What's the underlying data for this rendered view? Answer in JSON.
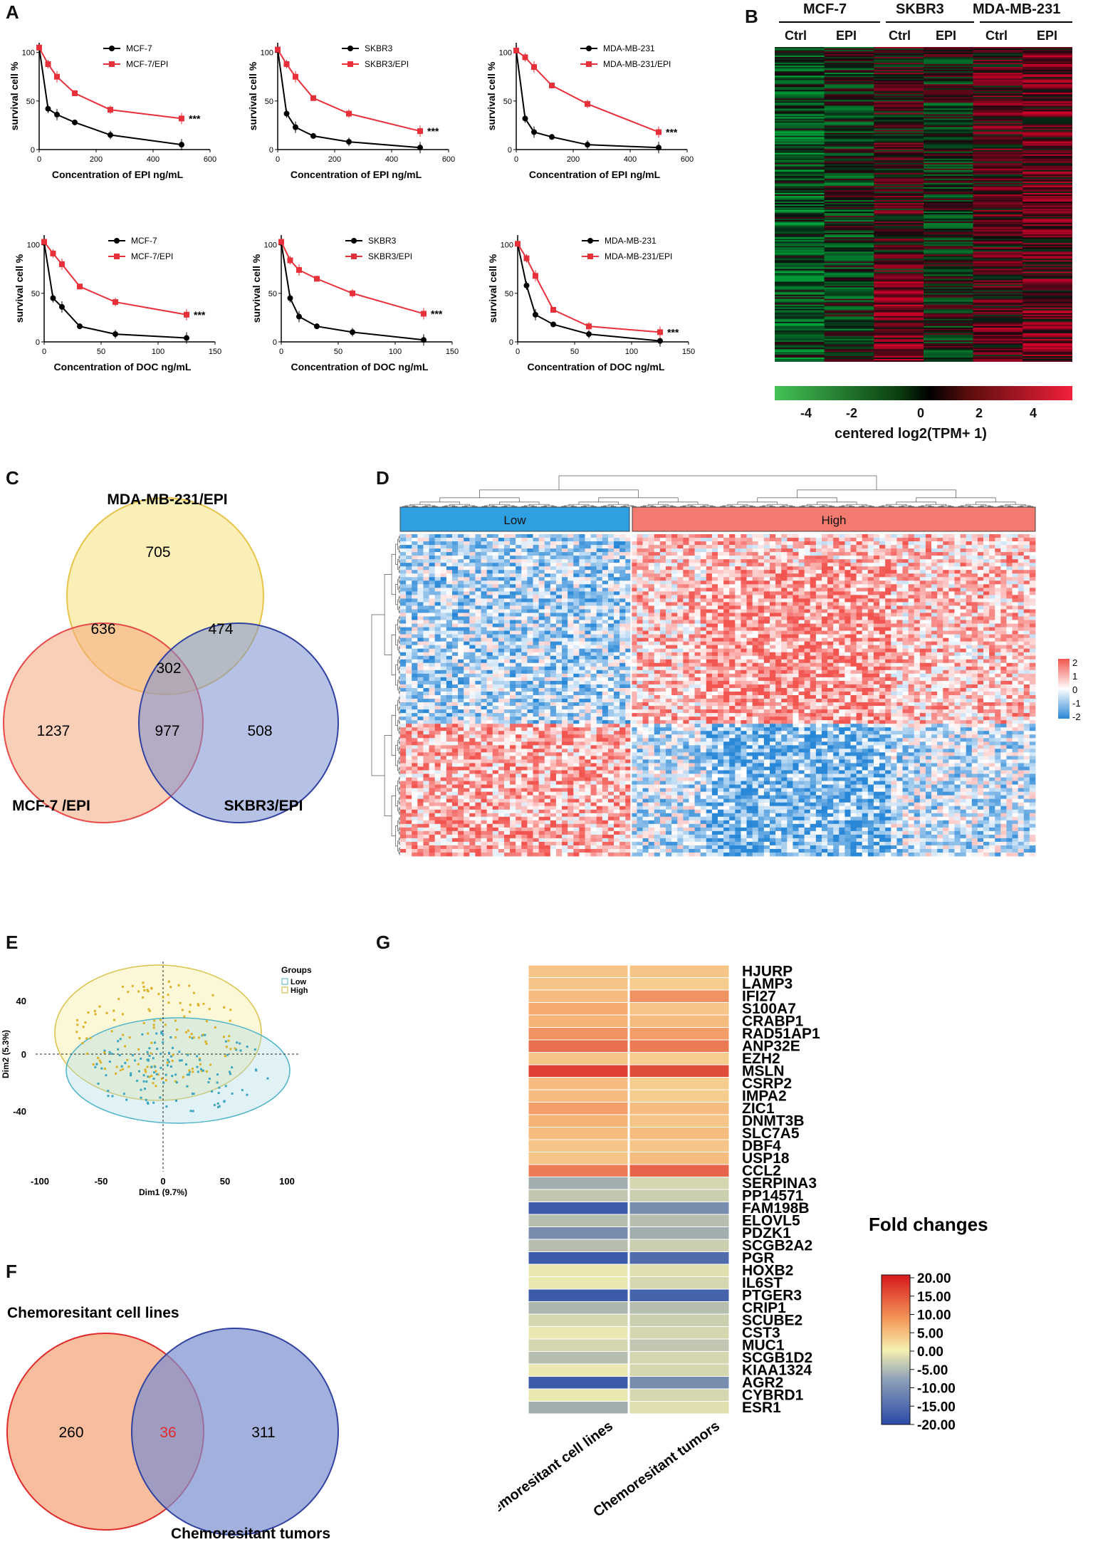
{
  "panels": {
    "A": "A",
    "B": "B",
    "C": "C",
    "D": "D",
    "E": "E",
    "F": "F",
    "G": "G"
  },
  "panel_a": {
    "ylabel": "survival cell %",
    "significance": "***",
    "plots": [
      {
        "xlabel": "Concentration of EPI ng/mL",
        "xticks": [
          0,
          200,
          400,
          600
        ],
        "xmax": 600,
        "x": [
          0,
          31.25,
          62.5,
          125,
          250,
          500
        ],
        "series": [
          {
            "name": "MCF-7",
            "color": "#000000",
            "values": [
              105,
              42,
              36,
              28,
              15,
              5
            ]
          },
          {
            "name": "MCF-7/EPI",
            "color": "#e8303a",
            "values": [
              105,
              88,
              75,
              58,
              41,
              32
            ]
          }
        ]
      },
      {
        "xlabel": "Concentration of EPI ng/mL",
        "xticks": [
          0,
          200,
          400,
          600
        ],
        "xmax": 600,
        "x": [
          0,
          31.25,
          62.5,
          125,
          250,
          500
        ],
        "series": [
          {
            "name": "SKBR3",
            "color": "#000000",
            "values": [
              103,
              37,
              23,
              14,
              8,
              2
            ]
          },
          {
            "name": "SKBR3/EPI",
            "color": "#e8303a",
            "values": [
              103,
              88,
              75,
              53,
              37,
              19
            ]
          }
        ]
      },
      {
        "xlabel": "Concentration of EPI ng/mL",
        "xticks": [
          0,
          200,
          400,
          600
        ],
        "xmax": 600,
        "x": [
          0,
          31.25,
          62.5,
          125,
          250,
          500
        ],
        "series": [
          {
            "name": "MDA-MB-231",
            "color": "#000000",
            "values": [
              102,
              32,
              18,
              13,
              5,
              2
            ]
          },
          {
            "name": "MDA-MB-231/EPI",
            "color": "#e8303a",
            "values": [
              102,
              95,
              85,
              66,
              47,
              18
            ]
          }
        ]
      },
      {
        "xlabel": "Concentration of DOC ng/mL",
        "xticks": [
          0,
          50,
          100,
          150
        ],
        "xmax": 150,
        "x": [
          0,
          7.8,
          15.6,
          31.25,
          62.5,
          125
        ],
        "series": [
          {
            "name": "MCF-7",
            "color": "#000000",
            "values": [
              102,
              45,
              36,
              16,
              8,
              4
            ]
          },
          {
            "name": "MCF-7/EPI",
            "color": "#e8303a",
            "values": [
              103,
              91,
              80,
              57,
              41,
              28
            ]
          }
        ]
      },
      {
        "xlabel": "Concentration of DOC ng/mL",
        "xticks": [
          0,
          50,
          100,
          150
        ],
        "xmax": 150,
        "x": [
          0,
          7.8,
          15.6,
          31.25,
          62.5,
          125
        ],
        "series": [
          {
            "name": "SKBR3",
            "color": "#000000",
            "values": [
              102,
              45,
              26,
              16,
              10,
              2
            ]
          },
          {
            "name": "SKBR3/EPI",
            "color": "#e8303a",
            "values": [
              103,
              84,
              74,
              65,
              50,
              29
            ]
          }
        ]
      },
      {
        "xlabel": "Concentration of DOC ng/mL",
        "xticks": [
          0,
          50,
          100,
          150
        ],
        "xmax": 150,
        "x": [
          0,
          7.8,
          15.6,
          31.25,
          62.5,
          125
        ],
        "series": [
          {
            "name": "MDA-MB-231",
            "color": "#000000",
            "values": [
              101,
              58,
              28,
              18,
              8,
              1
            ]
          },
          {
            "name": "MDA-MB-231/EPI",
            "color": "#e8303a",
            "values": [
              101,
              86,
              68,
              33,
              16,
              10
            ]
          }
        ]
      }
    ],
    "yticks": [
      0,
      50,
      100
    ]
  },
  "panel_b": {
    "groups": [
      "MCF-7",
      "SKBR3",
      "MDA-MB-231"
    ],
    "columns": [
      "Ctrl",
      "EPI",
      "Ctrl",
      "EPI",
      "Ctrl",
      "EPI"
    ],
    "colorbar_ticks": [
      "-4",
      "-2",
      "0",
      "2",
      "4"
    ],
    "colorbar_label": "centered log2(TPM+ 1)"
  },
  "panel_c": {
    "labels": {
      "top": "MDA-MB-231/EPI",
      "left": "MCF-7 /EPI",
      "right": "SKBR3/EPI"
    },
    "counts": {
      "top_only": "705",
      "left_only": "1237",
      "right_only": "508",
      "top_left": "636",
      "top_right": "474",
      "left_right": "977",
      "all": "302"
    }
  },
  "panel_d": {
    "group_low": "Low",
    "group_high": "High",
    "legend_ticks": [
      "2",
      "1",
      "0",
      "-1",
      "-2"
    ]
  },
  "panel_e": {
    "legend_title": "Groups",
    "legend_low": "Low",
    "legend_high": "High",
    "xlabel": "Dim1 (9.7%)",
    "ylabel": "Dim2 (5.3%)",
    "xticks": [
      "-100",
      "-50",
      "0",
      "50",
      "100"
    ],
    "yticks": [
      "40",
      "0",
      "-40"
    ]
  },
  "panel_f": {
    "label_left": "Chemoresitant cell lines",
    "label_right": "Chemoresitant tumors",
    "count_left": "260",
    "count_overlap": "36",
    "count_right": "311"
  },
  "panel_g": {
    "legend_title": "Fold changes",
    "legend_ticks": [
      "20.00",
      "15.00",
      "10.00",
      "5.00",
      "0.00",
      "-5.00",
      "-10.00",
      "-15.00",
      "-20.00"
    ],
    "column_labels": [
      "Chemoresitant cell lines",
      "Chemoresitant tumors"
    ],
    "genes": [
      "HJURP",
      "LAMP3",
      "IFI27",
      "S100A7",
      "CRABP1",
      "RAD51AP1",
      "ANP32E",
      "EZH2",
      "MSLN",
      "CSRP2",
      "IMPA2",
      "ZIC1",
      "DNMT3B",
      "SLC7A5",
      "DBF4",
      "USP18",
      "CCL2",
      "SERPINA3",
      "PP14571",
      "FAM198B",
      "ELOVL5",
      "PDZK1",
      "SCGB2A2",
      "PGR",
      "HOXB2",
      "IL6ST",
      "PTGER3",
      "CRIP1",
      "SCUBE2",
      "CST3",
      "MUC1",
      "SCGB1D2",
      "KIAA1324",
      "AGR2",
      "CYBRD1",
      "ESR1"
    ],
    "cell_lines": [
      5,
      5,
      6,
      8,
      7,
      10,
      13,
      5,
      17,
      6,
      6,
      9,
      7,
      6,
      5,
      5,
      12,
      -8,
      -5,
      -18,
      -6,
      -12,
      -6,
      -18,
      -1,
      -1,
      -18,
      -7,
      -3,
      -1,
      -3,
      -6,
      -1,
      -18,
      -1,
      -8
    ],
    "tumors": [
      5,
      4,
      10,
      5,
      6,
      9,
      12,
      4,
      16,
      4,
      4,
      6,
      5,
      6,
      5,
      6,
      14,
      -3,
      -4,
      -12,
      -6,
      -8,
      -4,
      -16,
      -2,
      -3,
      -17,
      -6,
      -4,
      -3,
      -5,
      -3,
      -3,
      -12,
      -3,
      -2
    ]
  }
}
